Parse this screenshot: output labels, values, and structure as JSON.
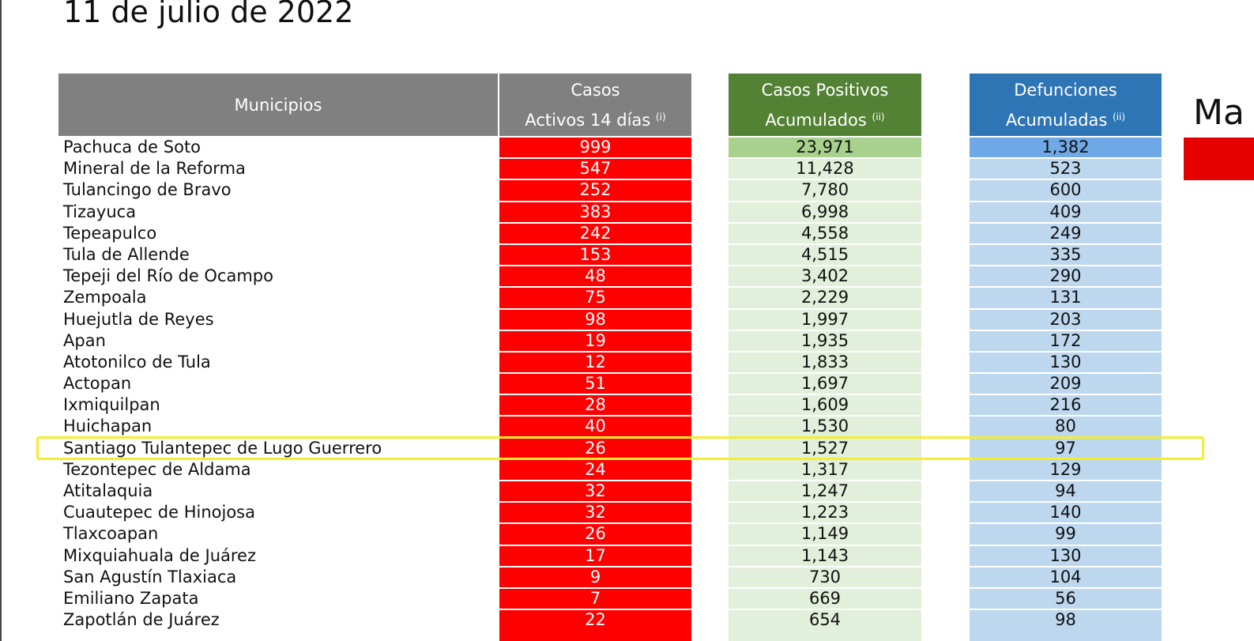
{
  "title": "11 de julio de 2022",
  "headers": {
    "municipios": "Municipios",
    "activos_line1": "Casos",
    "activos_line2": "Activos 14 días",
    "activos_note": "(i)",
    "positivos_line1": "Casos Positivos",
    "positivos_line2": "Acumulados",
    "positivos_note": "(ii)",
    "defunciones_line1": "Defunciones",
    "defunciones_line2": "Acumuladas",
    "defunciones_note": "(ii)"
  },
  "side_text": "Ma",
  "colors": {
    "header_gray": "#808080",
    "header_green": "#548235",
    "header_blue": "#2e75b6",
    "active_red": "#ff0000",
    "positive_light": "#e2efda",
    "death_light": "#bdd7ee",
    "highlight_yellow": "#f4ee2c"
  },
  "rows": [
    {
      "municipio": "Pachuca de Soto",
      "activos": "999",
      "positivos": "23,971",
      "defunciones": "1,382"
    },
    {
      "municipio": "Mineral de la Reforma",
      "activos": "547",
      "positivos": "11,428",
      "defunciones": "523"
    },
    {
      "municipio": "Tulancingo de Bravo",
      "activos": "252",
      "positivos": "7,780",
      "defunciones": "600"
    },
    {
      "municipio": "Tizayuca",
      "activos": "383",
      "positivos": "6,998",
      "defunciones": "409"
    },
    {
      "municipio": "Tepeapulco",
      "activos": "242",
      "positivos": "4,558",
      "defunciones": "249"
    },
    {
      "municipio": "Tula de Allende",
      "activos": "153",
      "positivos": "4,515",
      "defunciones": "335"
    },
    {
      "municipio": "Tepeji del Río de Ocampo",
      "activos": "48",
      "positivos": "3,402",
      "defunciones": "290"
    },
    {
      "municipio": "Zempoala",
      "activos": "75",
      "positivos": "2,229",
      "defunciones": "131"
    },
    {
      "municipio": "Huejutla de Reyes",
      "activos": "98",
      "positivos": "1,997",
      "defunciones": "203"
    },
    {
      "municipio": "Apan",
      "activos": "19",
      "positivos": "1,935",
      "defunciones": "172"
    },
    {
      "municipio": "Atotonilco de Tula",
      "activos": "12",
      "positivos": "1,833",
      "defunciones": "130"
    },
    {
      "municipio": "Actopan",
      "activos": "51",
      "positivos": "1,697",
      "defunciones": "209"
    },
    {
      "municipio": "Ixmiquilpan",
      "activos": "28",
      "positivos": "1,609",
      "defunciones": "216"
    },
    {
      "municipio": "Huichapan",
      "activos": "40",
      "positivos": "1,530",
      "defunciones": "80"
    },
    {
      "municipio": "Santiago Tulantepec de Lugo Guerrero",
      "activos": "26",
      "positivos": "1,527",
      "defunciones": "97"
    },
    {
      "municipio": "Tezontepec de Aldama",
      "activos": "24",
      "positivos": "1,317",
      "defunciones": "129"
    },
    {
      "municipio": "Atitalaquia",
      "activos": "32",
      "positivos": "1,247",
      "defunciones": "94"
    },
    {
      "municipio": "Cuautepec de Hinojosa",
      "activos": "32",
      "positivos": "1,223",
      "defunciones": "140"
    },
    {
      "municipio": "Tlaxcoapan",
      "activos": "26",
      "positivos": "1,149",
      "defunciones": "99"
    },
    {
      "municipio": "Mixquiahuala de Juárez",
      "activos": "17",
      "positivos": "1,143",
      "defunciones": "130"
    },
    {
      "municipio": "San Agustín Tlaxiaca",
      "activos": "9",
      "positivos": "730",
      "defunciones": "104"
    },
    {
      "municipio": "Emiliano Zapata",
      "activos": "7",
      "positivos": "669",
      "defunciones": "56"
    },
    {
      "municipio": "Zapotlán de Juárez",
      "activos": "22",
      "positivos": "654",
      "defunciones": "98"
    }
  ]
}
